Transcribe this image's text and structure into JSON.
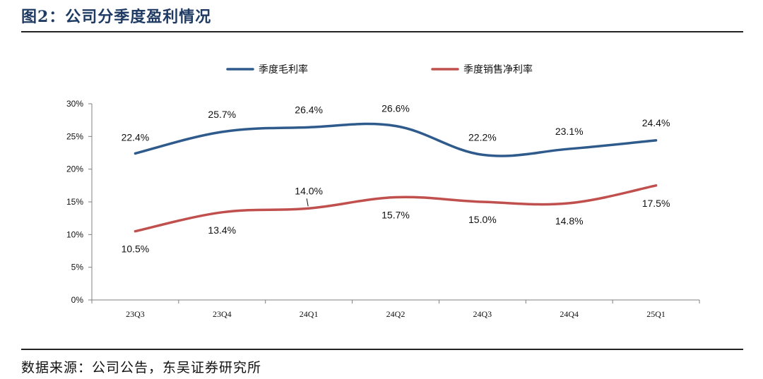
{
  "header": {
    "title": "图2：公司分季度盈利情况"
  },
  "footer": {
    "source": "数据来源：公司公告，东吴证券研究所"
  },
  "colors": {
    "gross": "#2e5b8c",
    "net": "#c0504d",
    "axis": "#7f7f7f"
  },
  "chart_data": {
    "type": "line",
    "title": "",
    "xlabel": "",
    "ylabel": "",
    "categories": [
      "23Q3",
      "23Q4",
      "24Q1",
      "24Q2",
      "24Q3",
      "24Q4",
      "25Q1"
    ],
    "ylim": [
      0,
      30
    ],
    "yticks": [
      0,
      5,
      10,
      15,
      20,
      25,
      30
    ],
    "ytick_labels": [
      "0%",
      "5%",
      "10%",
      "15%",
      "20%",
      "25%",
      "30%"
    ],
    "grid": false,
    "legend_position": "top",
    "series": [
      {
        "name": "季度毛利率",
        "values": [
          22.4,
          25.7,
          26.4,
          26.6,
          22.2,
          23.1,
          24.4
        ],
        "labels": [
          "22.4%",
          "25.7%",
          "26.4%",
          "26.6%",
          "22.2%",
          "23.1%",
          "24.4%"
        ]
      },
      {
        "name": "季度销售净利率",
        "values": [
          10.5,
          13.4,
          14.0,
          15.7,
          15.0,
          14.8,
          17.5
        ],
        "labels": [
          "10.5%",
          "13.4%",
          "14.0%",
          "15.7%",
          "15.0%",
          "14.8%",
          "17.5%"
        ]
      }
    ]
  }
}
